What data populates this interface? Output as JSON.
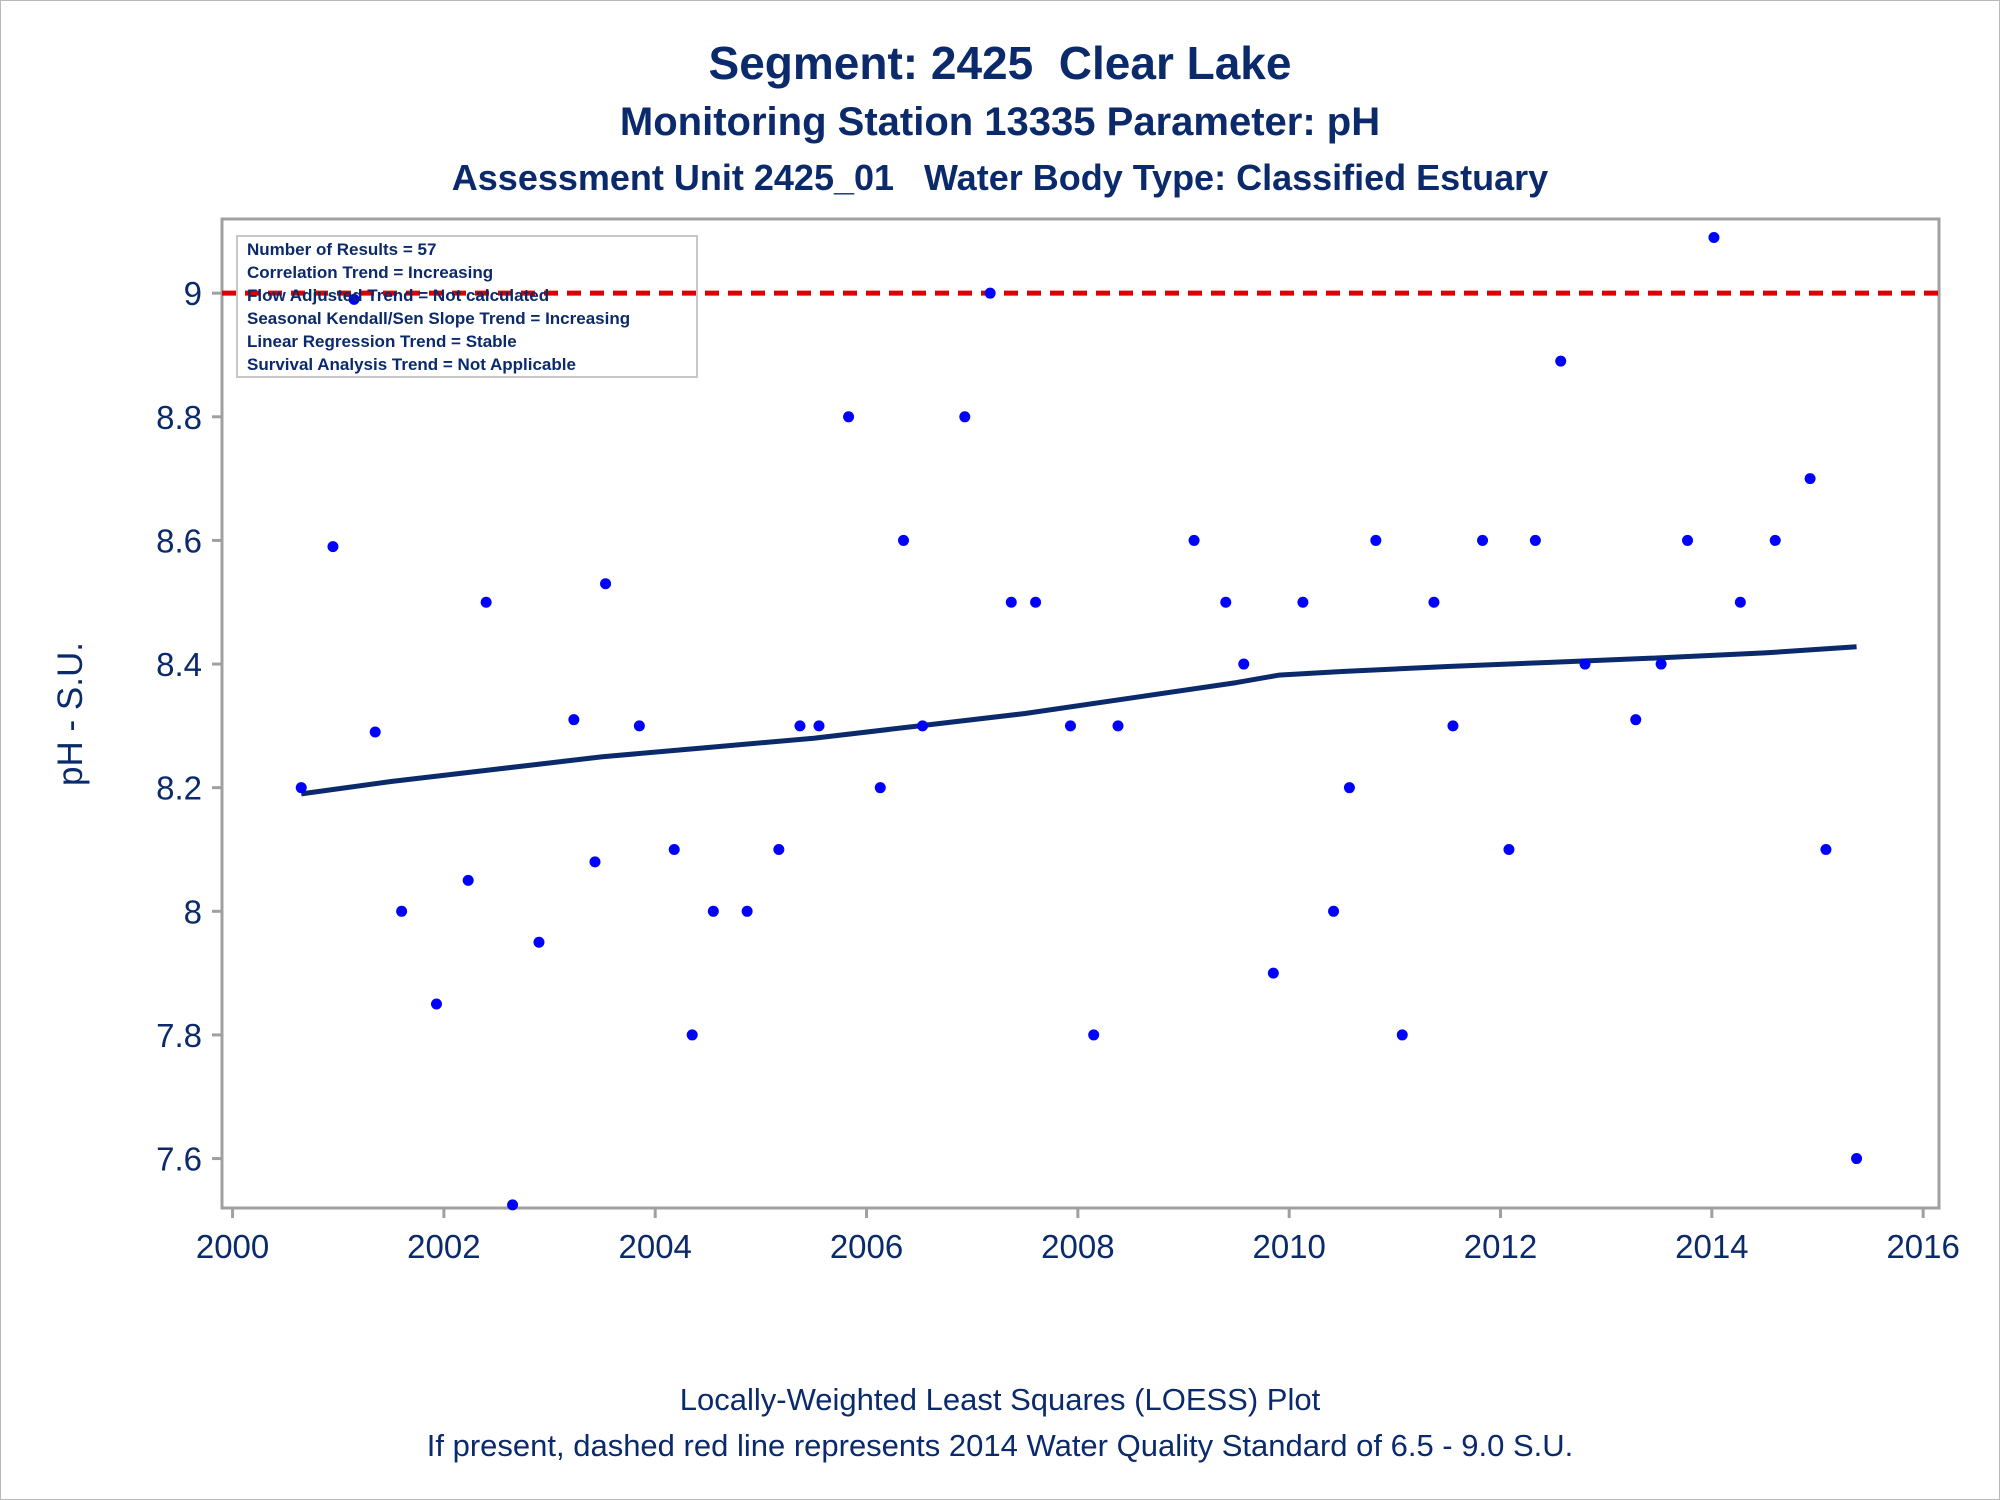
{
  "titles": {
    "line1": "Segment: 2425  Clear Lake",
    "line2": "Monitoring Station 13335 Parameter: pH",
    "line3": "Assessment Unit 2425_01   Water Body Type: Classified Estuary"
  },
  "footnotes": {
    "line1": "Locally-Weighted Least Squares (LOESS) Plot",
    "line2": "If present, dashed red line represents 2014 Water Quality Standard of 6.5 - 9.0 S.U."
  },
  "stats_box": [
    "Number of Results = 57",
    "Correlation Trend = Increasing",
    "Flow Adjusted Trend = Not calculated",
    "Seasonal Kendall/Sen Slope Trend = Increasing",
    "Linear Regression Trend = Stable",
    "Survival Analysis Trend = Not Applicable"
  ],
  "colors": {
    "text": "#0b2a6b",
    "points": "#0000ff",
    "loess": "#0b2a6b",
    "standard_line": "#dd0000",
    "axis": "#a0a0a0"
  },
  "chart_data": {
    "type": "scatter",
    "ylabel": "pH - S.U.",
    "xlabel": "",
    "xlim": [
      1999.9,
      2016.15
    ],
    "ylim": [
      7.52,
      9.12
    ],
    "x_ticks": [
      2000,
      2002,
      2004,
      2006,
      2008,
      2010,
      2012,
      2014,
      2016
    ],
    "x_tick_labels": [
      "2000",
      "2002",
      "2004",
      "2006",
      "2008",
      "2010",
      "2012",
      "2014",
      "2016"
    ],
    "y_ticks": [
      7.6,
      7.8,
      8.0,
      8.2,
      8.4,
      8.6,
      8.8,
      9.0
    ],
    "y_tick_labels": [
      "7.6",
      "7.8",
      "8",
      "8.2",
      "8.4",
      "8.6",
      "8.8",
      "9"
    ],
    "grid": false,
    "series": [
      {
        "type": "scatter",
        "points": [
          [
            2000.65,
            8.2
          ],
          [
            2000.95,
            8.59
          ],
          [
            2001.15,
            8.99
          ],
          [
            2001.35,
            8.29
          ],
          [
            2001.6,
            8.0
          ],
          [
            2001.93,
            7.85
          ],
          [
            2002.23,
            8.05
          ],
          [
            2002.4,
            8.5
          ],
          [
            2002.65,
            7.525
          ],
          [
            2002.9,
            7.95
          ],
          [
            2003.23,
            8.31
          ],
          [
            2003.43,
            8.08
          ],
          [
            2003.53,
            8.53
          ],
          [
            2003.85,
            8.3
          ],
          [
            2004.18,
            8.1
          ],
          [
            2004.35,
            7.8
          ],
          [
            2004.55,
            8.0
          ],
          [
            2004.87,
            8.0
          ],
          [
            2005.17,
            8.1
          ],
          [
            2005.37,
            8.3
          ],
          [
            2005.55,
            8.3
          ],
          [
            2005.83,
            8.8
          ],
          [
            2006.13,
            8.2
          ],
          [
            2006.35,
            8.6
          ],
          [
            2006.53,
            8.3
          ],
          [
            2006.93,
            8.8
          ],
          [
            2007.17,
            9.0
          ],
          [
            2007.37,
            8.5
          ],
          [
            2007.6,
            8.5
          ],
          [
            2007.93,
            8.3
          ],
          [
            2008.15,
            7.8
          ],
          [
            2008.38,
            8.3
          ],
          [
            2009.1,
            8.6
          ],
          [
            2009.4,
            8.5
          ],
          [
            2009.57,
            8.4
          ],
          [
            2009.85,
            7.9
          ],
          [
            2010.13,
            8.5
          ],
          [
            2010.42,
            8.0
          ],
          [
            2010.57,
            8.2
          ],
          [
            2010.82,
            8.6
          ],
          [
            2011.07,
            7.8
          ],
          [
            2011.37,
            8.5
          ],
          [
            2011.55,
            8.3
          ],
          [
            2011.83,
            8.6
          ],
          [
            2012.08,
            8.1
          ],
          [
            2012.33,
            8.6
          ],
          [
            2012.57,
            8.89
          ],
          [
            2012.8,
            8.4
          ],
          [
            2013.28,
            8.31
          ],
          [
            2013.52,
            8.4
          ],
          [
            2013.77,
            8.6
          ],
          [
            2014.02,
            9.09
          ],
          [
            2014.27,
            8.5
          ],
          [
            2014.6,
            8.6
          ],
          [
            2014.93,
            8.7
          ],
          [
            2015.08,
            8.1
          ],
          [
            2015.37,
            7.6
          ]
        ]
      },
      {
        "type": "line",
        "points": [
          [
            2000.65,
            8.19
          ],
          [
            2001.5,
            8.21
          ],
          [
            2002.5,
            8.23
          ],
          [
            2003.5,
            8.25
          ],
          [
            2004.5,
            8.265
          ],
          [
            2005.5,
            8.28
          ],
          [
            2006.5,
            8.3
          ],
          [
            2007.5,
            8.32
          ],
          [
            2008.5,
            8.345
          ],
          [
            2009.5,
            8.37
          ],
          [
            2009.9,
            8.382
          ],
          [
            2010.5,
            8.388
          ],
          [
            2011.5,
            8.396
          ],
          [
            2012.5,
            8.403
          ],
          [
            2013.5,
            8.41
          ],
          [
            2014.5,
            8.418
          ],
          [
            2015.37,
            8.428
          ]
        ]
      },
      {
        "type": "reference_line",
        "y": 9.0
      }
    ]
  }
}
